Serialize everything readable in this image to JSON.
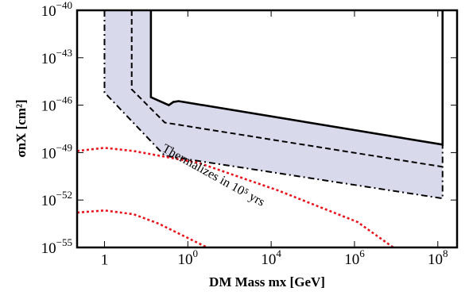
{
  "chart_data": {
    "type": "line",
    "x_label": "DM Mass mx [GeV]",
    "y_label": "σnX [cm²]",
    "annotation": "Thermalizes in 10⁵ yrs",
    "xscale": "log",
    "yscale": "log",
    "xlim": [
      0.22,
      290000000.0
    ],
    "ylim": [
      1e-55,
      1e-40
    ],
    "xticks": [
      1,
      100,
      {
        "value": 10000,
        "label": "104"
      },
      {
        "value": 1000000,
        "label": "106"
      },
      {
        "value": 100000000,
        "label": "108"
      }
    ],
    "yticks": [
      {
        "value": 1e-55,
        "label": "10−55"
      },
      {
        "value": 1e-52,
        "label": "10−52"
      },
      {
        "value": 1e-49,
        "label": "10−49"
      },
      {
        "value": 1e-46,
        "label": "10−46"
      },
      {
        "value": 1e-43,
        "label": "10−43"
      },
      {
        "value": 1e-40,
        "label": "10−40"
      }
    ],
    "fill_color": "#d9d9ec",
    "series": [
      {
        "color": "#000000",
        "style": "solid",
        "x": [
          13,
          13,
          35,
          45,
          60,
          130000000.0,
          130000000.0
        ],
        "values": [
          1e-40,
          3.2e-46,
          1e-46,
          1.6e-46,
          1.8e-46,
          3.2e-49,
          1e-40
        ]
      },
      {
        "color": "#000000",
        "style": "dashed",
        "x": [
          4.5,
          4.5,
          28,
          130000000.0
        ],
        "values": [
          1e-40,
          1e-45,
          7.9e-48,
          1.26e-50
        ]
      },
      {
        "color": "#000000",
        "style": "dashdot",
        "x": [
          1,
          1,
          28,
          130000000.0,
          130000000.0
        ],
        "values": [
          1e-40,
          6.3e-46,
          6.3e-50,
          1.26e-52,
          1e-40
        ]
      },
      {
        "color": "#e8141c",
        "style": "dotted",
        "x": [
          0.22,
          1,
          5,
          186,
          14800,
          1200000,
          8500000
        ],
        "values": [
          1.26e-49,
          2e-49,
          1.26e-49,
          2.2e-50,
          4e-52,
          4e-54,
          1e-55
        ]
      },
      {
        "color": "#e8141c",
        "style": "dotted",
        "x": [
          0.22,
          1,
          5,
          20,
          290
        ],
        "values": [
          1.6e-53,
          2.2e-53,
          1.26e-53,
          3.2e-54,
          1e-55
        ]
      }
    ]
  }
}
